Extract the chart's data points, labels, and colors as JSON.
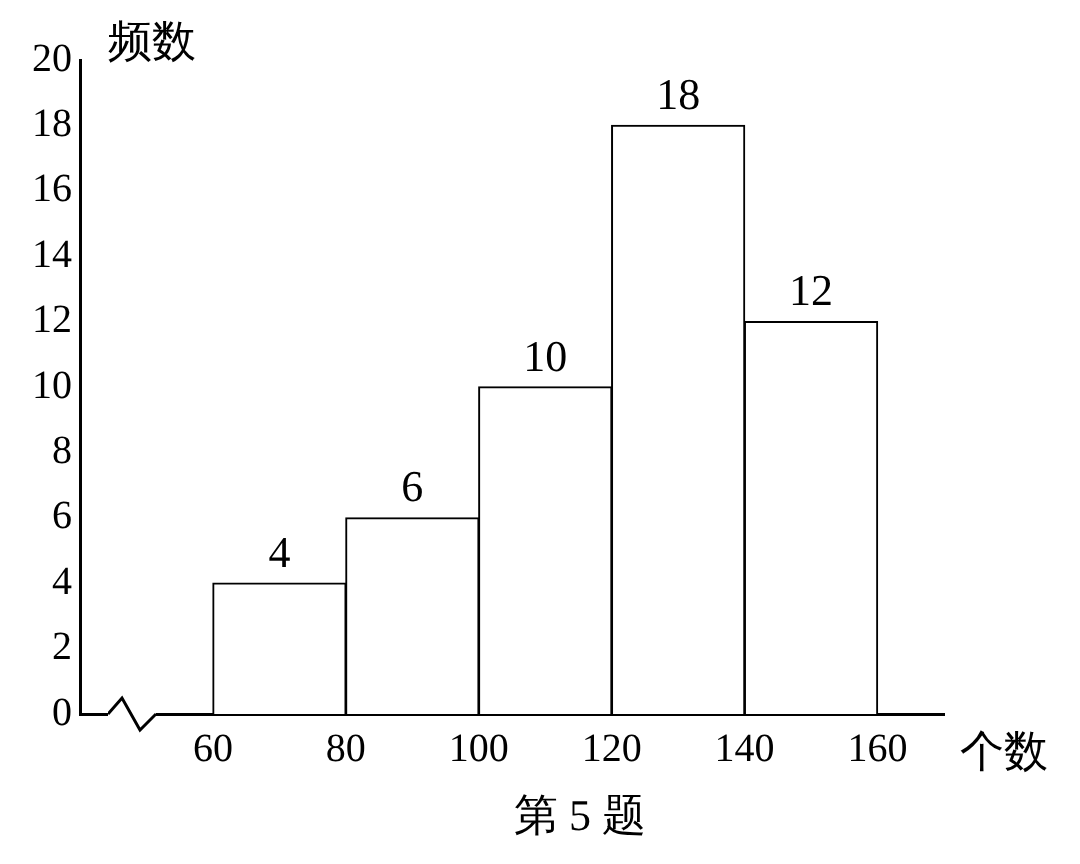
{
  "chart_data": {
    "type": "histogram",
    "ylabel": "频数",
    "xlabel": "个数",
    "annotations": [
      "第 5 题"
    ],
    "bins": [
      60,
      80,
      100,
      120,
      140,
      160
    ],
    "values": [
      4,
      6,
      10,
      18,
      12
    ],
    "color": "#ffffff",
    "xlim": [
      40,
      170
    ],
    "xticks": [
      60,
      80,
      100,
      120,
      140,
      160
    ],
    "ylim": [
      0,
      20
    ],
    "yticks": [
      0,
      2,
      4,
      6,
      8,
      10,
      12,
      14,
      16,
      18,
      20
    ],
    "data_labels": true,
    "grid": false,
    "legend": false
  }
}
